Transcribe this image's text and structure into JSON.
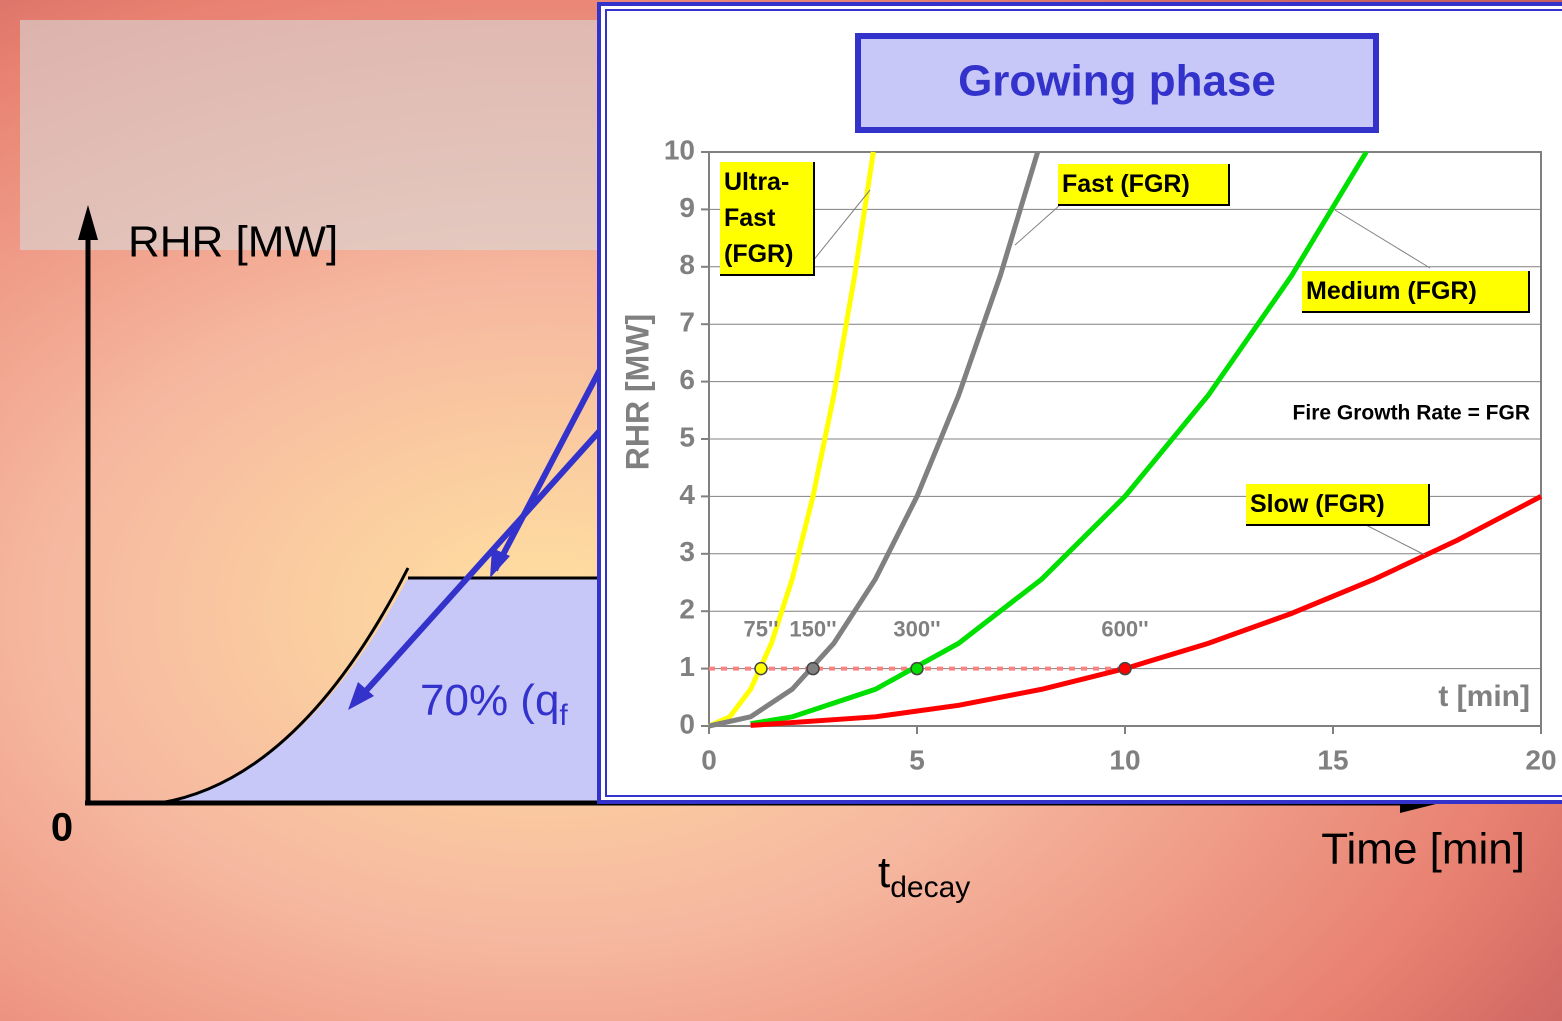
{
  "slide": {
    "y_label": "RHR [MW]",
    "x_label": "Time [min]",
    "origin": "0",
    "t_decay": "t",
    "t_decay_sub": "decay",
    "area_label": "70% (q",
    "area_label_sub": "f"
  },
  "chart_data": {
    "type": "line",
    "title": "Growing phase",
    "y_label": "RHR [MW]",
    "x_label": "t [min]",
    "annotation": "Fire Growth Rate = FGR",
    "xlim": [
      0,
      20
    ],
    "xticks": [
      0,
      5,
      10,
      15,
      20
    ],
    "ylim": [
      0,
      10
    ],
    "yticks": [
      0,
      1,
      2,
      3,
      4,
      5,
      6,
      7,
      8,
      9,
      10
    ],
    "grid": true,
    "series": [
      {
        "name": "Ultra-Fast (FGR)",
        "color": "#ffff00",
        "x": [
          0,
          0.5,
          1,
          1.5,
          2,
          2.5,
          3,
          3.5,
          3.95
        ],
        "values": [
          0,
          0.16,
          0.64,
          1.44,
          2.56,
          4,
          5.76,
          7.84,
          10
        ]
      },
      {
        "name": "Fast (FGR)",
        "color": "#808080",
        "x": [
          0,
          1,
          2,
          3,
          4,
          5,
          6,
          7,
          7.9
        ],
        "values": [
          0,
          0.16,
          0.64,
          1.44,
          2.56,
          4,
          5.76,
          7.84,
          10
        ]
      },
      {
        "name": "Medium (FGR)",
        "color": "#00e000",
        "x": [
          1,
          2,
          4,
          6,
          8,
          10,
          12,
          14,
          15.8
        ],
        "values": [
          0.04,
          0.16,
          0.64,
          1.44,
          2.56,
          4,
          5.76,
          7.84,
          10
        ]
      },
      {
        "name": "Slow (FGR)",
        "color": "#ff0000",
        "x": [
          1,
          4,
          6,
          8,
          10,
          12,
          14,
          16,
          18,
          20
        ],
        "values": [
          0.01,
          0.16,
          0.36,
          0.64,
          1,
          1.44,
          1.96,
          2.56,
          3.24,
          4
        ]
      }
    ],
    "markers": [
      {
        "x": 1.25,
        "y": 1,
        "label": "75''"
      },
      {
        "x": 2.5,
        "y": 1,
        "label": "150''"
      },
      {
        "x": 5,
        "y": 1,
        "label": "300''"
      },
      {
        "x": 10,
        "y": 1,
        "label": "600''"
      }
    ]
  }
}
